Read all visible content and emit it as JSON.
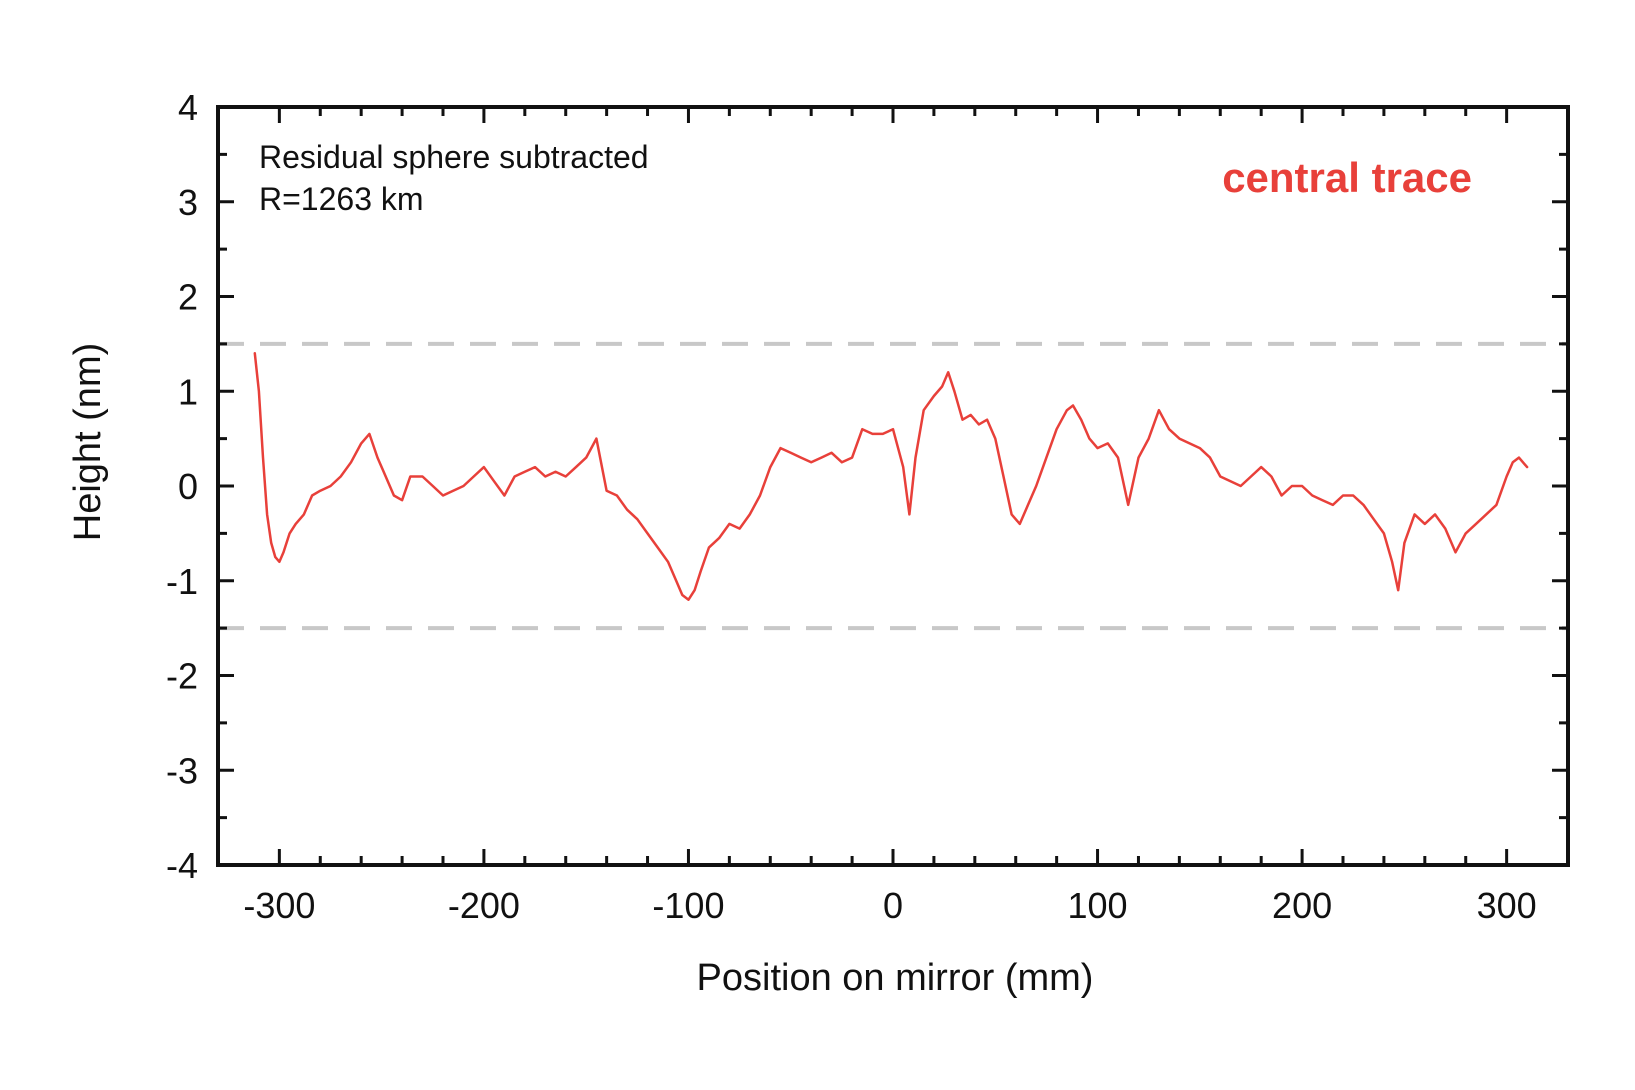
{
  "chart_data": {
    "type": "line",
    "xlabel": "Position on mirror (mm)",
    "ylabel": "Height (nm)",
    "xlim": [
      -330,
      330
    ],
    "ylim": [
      -4,
      4
    ],
    "x_ticks": [
      "-300",
      "-200",
      "-100",
      "0",
      "100",
      "200",
      "300"
    ],
    "x_tick_values": [
      -300,
      -200,
      -100,
      0,
      100,
      200,
      300
    ],
    "y_ticks": [
      "4",
      "3",
      "2",
      "1",
      "0",
      "-1",
      "-2",
      "-3",
      "-4"
    ],
    "y_tick_values": [
      4,
      3,
      2,
      1,
      0,
      -1,
      -2,
      -3,
      -4
    ],
    "annotation": [
      "Residual sphere subtracted",
      "R=1263 km"
    ],
    "grid": false,
    "reference_lines": [
      1.5,
      -1.5
    ],
    "series": [
      {
        "name": "central trace",
        "color": "#e8403a",
        "x": [
          -312,
          -310,
          -308,
          -306,
          -304,
          -302,
          -300,
          -298,
          -295,
          -292,
          -288,
          -284,
          -280,
          -275,
          -270,
          -265,
          -260,
          -256,
          -252,
          -248,
          -244,
          -240,
          -236,
          -230,
          -225,
          -220,
          -215,
          -210,
          -205,
          -200,
          -195,
          -190,
          -185,
          -180,
          -175,
          -170,
          -165,
          -160,
          -155,
          -150,
          -145,
          -140,
          -135,
          -130,
          -125,
          -120,
          -115,
          -110,
          -106,
          -103,
          -100,
          -97,
          -94,
          -90,
          -85,
          -80,
          -75,
          -70,
          -65,
          -60,
          -55,
          -50,
          -45,
          -40,
          -35,
          -30,
          -25,
          -20,
          -15,
          -10,
          -5,
          0,
          5,
          8,
          11,
          15,
          20,
          24,
          27,
          30,
          34,
          38,
          42,
          46,
          50,
          54,
          58,
          62,
          66,
          70,
          75,
          80,
          85,
          88,
          92,
          96,
          100,
          105,
          110,
          115,
          120,
          125,
          130,
          135,
          140,
          145,
          150,
          155,
          160,
          165,
          170,
          175,
          180,
          185,
          190,
          195,
          200,
          205,
          210,
          215,
          220,
          225,
          230,
          235,
          240,
          244,
          247,
          250,
          255,
          260,
          265,
          270,
          275,
          280,
          285,
          290,
          295,
          300,
          303,
          306,
          310
        ],
        "y": [
          1.4,
          1.0,
          0.3,
          -0.3,
          -0.6,
          -0.75,
          -0.8,
          -0.7,
          -0.5,
          -0.4,
          -0.3,
          -0.1,
          -0.05,
          0.0,
          0.1,
          0.25,
          0.45,
          0.55,
          0.3,
          0.1,
          -0.1,
          -0.15,
          0.1,
          0.1,
          0.0,
          -0.1,
          -0.05,
          0.0,
          0.1,
          0.2,
          0.05,
          -0.1,
          0.1,
          0.15,
          0.2,
          0.1,
          0.15,
          0.1,
          0.2,
          0.3,
          0.5,
          -0.05,
          -0.1,
          -0.25,
          -0.35,
          -0.5,
          -0.65,
          -0.8,
          -1.0,
          -1.15,
          -1.2,
          -1.1,
          -0.9,
          -0.65,
          -0.55,
          -0.4,
          -0.45,
          -0.3,
          -0.1,
          0.2,
          0.4,
          0.35,
          0.3,
          0.25,
          0.3,
          0.35,
          0.25,
          0.3,
          0.6,
          0.55,
          0.55,
          0.6,
          0.2,
          -0.3,
          0.3,
          0.8,
          0.95,
          1.05,
          1.2,
          1.0,
          0.7,
          0.75,
          0.65,
          0.7,
          0.5,
          0.1,
          -0.3,
          -0.4,
          -0.2,
          0.0,
          0.3,
          0.6,
          0.8,
          0.85,
          0.7,
          0.5,
          0.4,
          0.45,
          0.3,
          -0.2,
          0.3,
          0.5,
          0.8,
          0.6,
          0.5,
          0.45,
          0.4,
          0.3,
          0.1,
          0.05,
          0.0,
          0.1,
          0.2,
          0.1,
          -0.1,
          0.0,
          0.0,
          -0.1,
          -0.15,
          -0.2,
          -0.1,
          -0.1,
          -0.2,
          -0.35,
          -0.5,
          -0.8,
          -1.1,
          -0.6,
          -0.3,
          -0.4,
          -0.3,
          -0.45,
          -0.7,
          -0.5,
          -0.4,
          -0.3,
          -0.2,
          0.1,
          0.25,
          0.3,
          0.2
        ]
      }
    ]
  }
}
